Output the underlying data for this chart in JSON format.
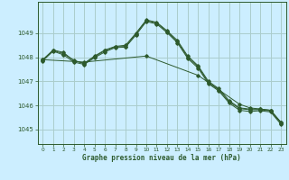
{
  "background_color": "#cceeff",
  "grid_color": "#aacccc",
  "line_color": "#2d5a2d",
  "xlabel": "Graphe pression niveau de la mer (hPa)",
  "xlim": [
    -0.5,
    23.5
  ],
  "ylim": [
    1044.4,
    1050.3
  ],
  "yticks": [
    1045,
    1046,
    1047,
    1048,
    1049
  ],
  "xticks": [
    0,
    1,
    2,
    3,
    4,
    5,
    6,
    7,
    8,
    9,
    10,
    11,
    12,
    13,
    14,
    15,
    16,
    17,
    18,
    19,
    20,
    21,
    22,
    23
  ],
  "series": [
    {
      "x": [
        0,
        1,
        2,
        3,
        4,
        5,
        6,
        7,
        8,
        9,
        10,
        11,
        12,
        13,
        14,
        15,
        16,
        17,
        18,
        19,
        20,
        21,
        22,
        23
      ],
      "y": [
        1047.9,
        1048.3,
        1048.2,
        1047.85,
        1047.75,
        1048.05,
        1048.3,
        1048.45,
        1048.5,
        1049.0,
        1049.55,
        1049.45,
        1049.1,
        1048.7,
        1048.05,
        1047.65,
        1047.0,
        1046.7,
        1046.2,
        1045.9,
        1045.85,
        1045.85,
        1045.8,
        1045.3
      ]
    },
    {
      "x": [
        0,
        4,
        10,
        15,
        19,
        20,
        21,
        22,
        23
      ],
      "y": [
        1047.9,
        1047.8,
        1048.05,
        1047.25,
        1046.05,
        1045.9,
        1045.85,
        1045.8,
        1045.3
      ]
    },
    {
      "x": [
        0,
        1,
        2,
        3,
        4,
        5,
        6,
        7,
        8,
        9,
        10,
        11,
        12,
        13,
        14,
        15,
        16,
        17,
        18,
        19,
        20,
        21,
        22,
        23
      ],
      "y": [
        1047.85,
        1048.25,
        1048.1,
        1047.8,
        1047.7,
        1047.98,
        1048.22,
        1048.4,
        1048.42,
        1048.92,
        1049.48,
        1049.38,
        1049.02,
        1048.6,
        1047.95,
        1047.55,
        1046.9,
        1046.6,
        1046.1,
        1045.8,
        1045.75,
        1045.78,
        1045.73,
        1045.22
      ]
    },
    {
      "x": [
        0,
        1,
        2,
        3,
        4,
        5,
        6,
        7,
        8,
        9,
        10,
        11,
        12,
        13,
        14,
        15,
        16,
        17,
        18,
        19,
        20,
        21,
        22,
        23
      ],
      "y": [
        1047.88,
        1048.28,
        1048.15,
        1047.88,
        1047.73,
        1048.02,
        1048.27,
        1048.43,
        1048.45,
        1048.97,
        1049.52,
        1049.42,
        1049.07,
        1048.65,
        1048.0,
        1047.6,
        1046.95,
        1046.65,
        1046.15,
        1045.87,
        1045.82,
        1045.82,
        1045.77,
        1045.27
      ]
    }
  ]
}
